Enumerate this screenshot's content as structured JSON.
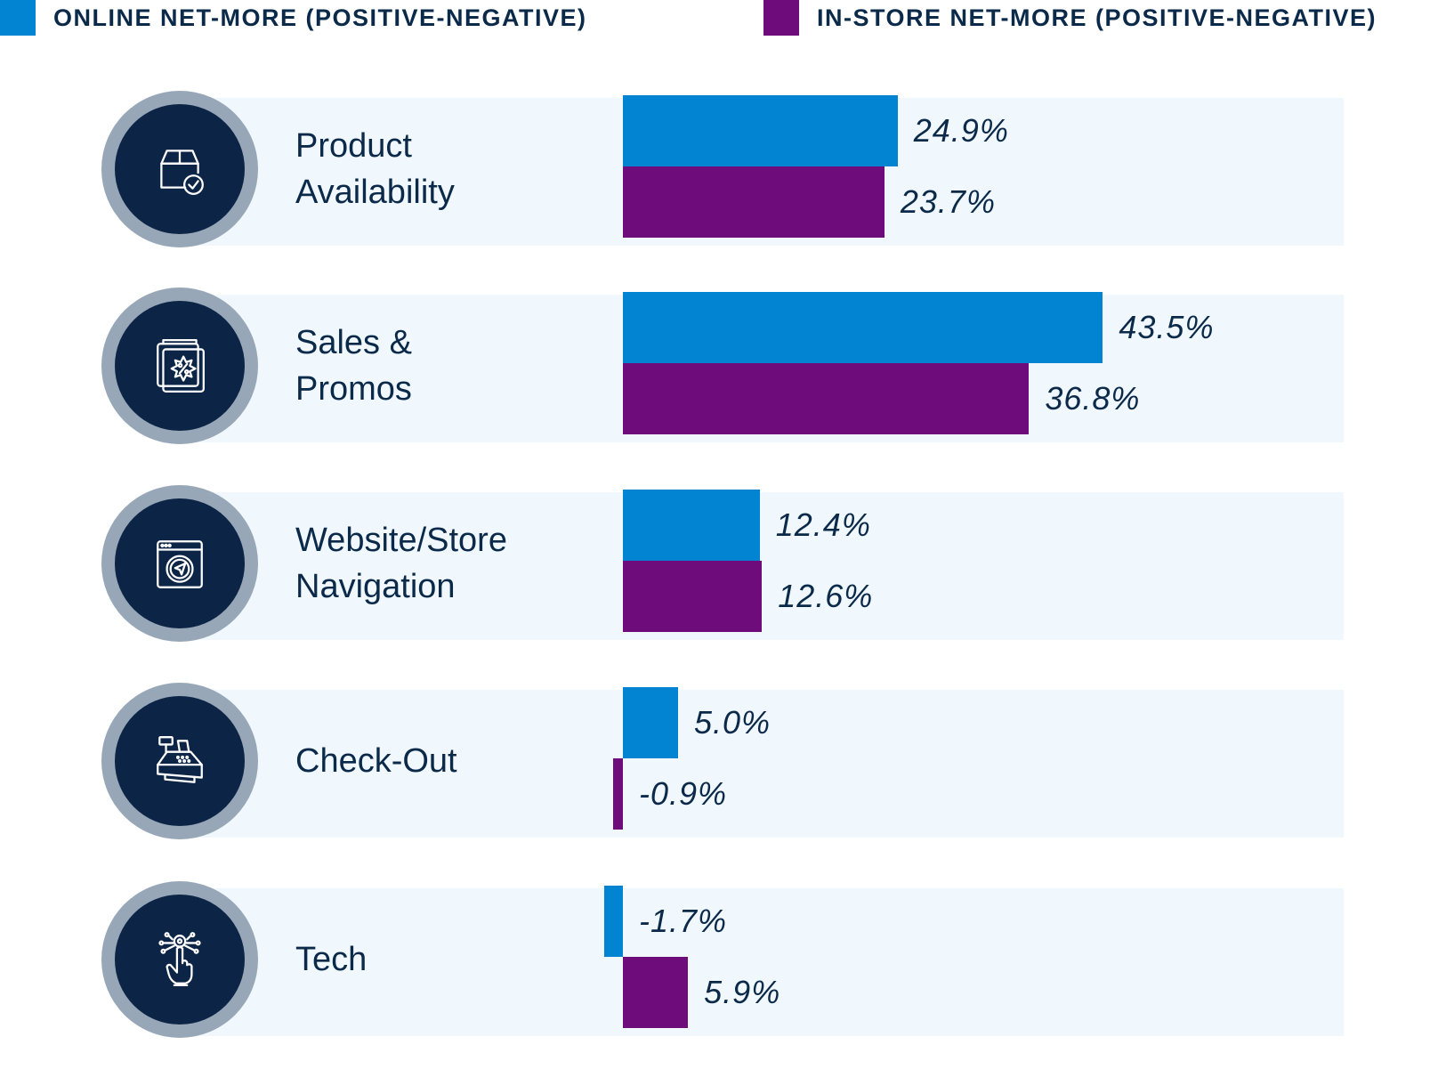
{
  "legend": {
    "online": {
      "label": "ONLINE NET-MORE (POSITIVE-NEGATIVE)",
      "color": "#0284d3"
    },
    "instore": {
      "label": "IN-STORE NET-MORE (POSITIVE-NEGATIVE)",
      "color": "#6e0c7c"
    }
  },
  "rows": [
    {
      "line1": "Product",
      "line2": "Availability",
      "icon": "box-check-icon"
    },
    {
      "line1": "Sales &",
      "line2": "Promos",
      "icon": "discount-tag-icon"
    },
    {
      "line1": "Website/Store",
      "line2": "Navigation",
      "icon": "browser-navigation-icon"
    },
    {
      "line1": "Check-Out",
      "line2": "",
      "icon": "cash-register-icon"
    },
    {
      "line1": "Tech",
      "line2": "",
      "icon": "tech-hand-icon"
    }
  ],
  "chart_data": {
    "type": "bar",
    "orientation": "horizontal",
    "title": "",
    "xlabel": "",
    "ylabel": "",
    "categories": [
      "Product Availability",
      "Sales & Promos",
      "Website/Store Navigation",
      "Check-Out",
      "Tech"
    ],
    "series": [
      {
        "name": "ONLINE NET-MORE (POSITIVE-NEGATIVE)",
        "values": [
          24.9,
          43.5,
          12.4,
          5.0,
          -1.7
        ],
        "labels": [
          "24.9%",
          "43.5%",
          "12.4%",
          "5.0%",
          "-1.7%"
        ]
      },
      {
        "name": "IN-STORE NET-MORE (POSITIVE-NEGATIVE)",
        "values": [
          23.7,
          36.8,
          12.6,
          -0.9,
          5.9
        ],
        "labels": [
          "23.7%",
          "36.8%",
          "12.6%",
          "-0.9%",
          "5.9%"
        ]
      }
    ],
    "grid": false,
    "legend_position": "top"
  }
}
